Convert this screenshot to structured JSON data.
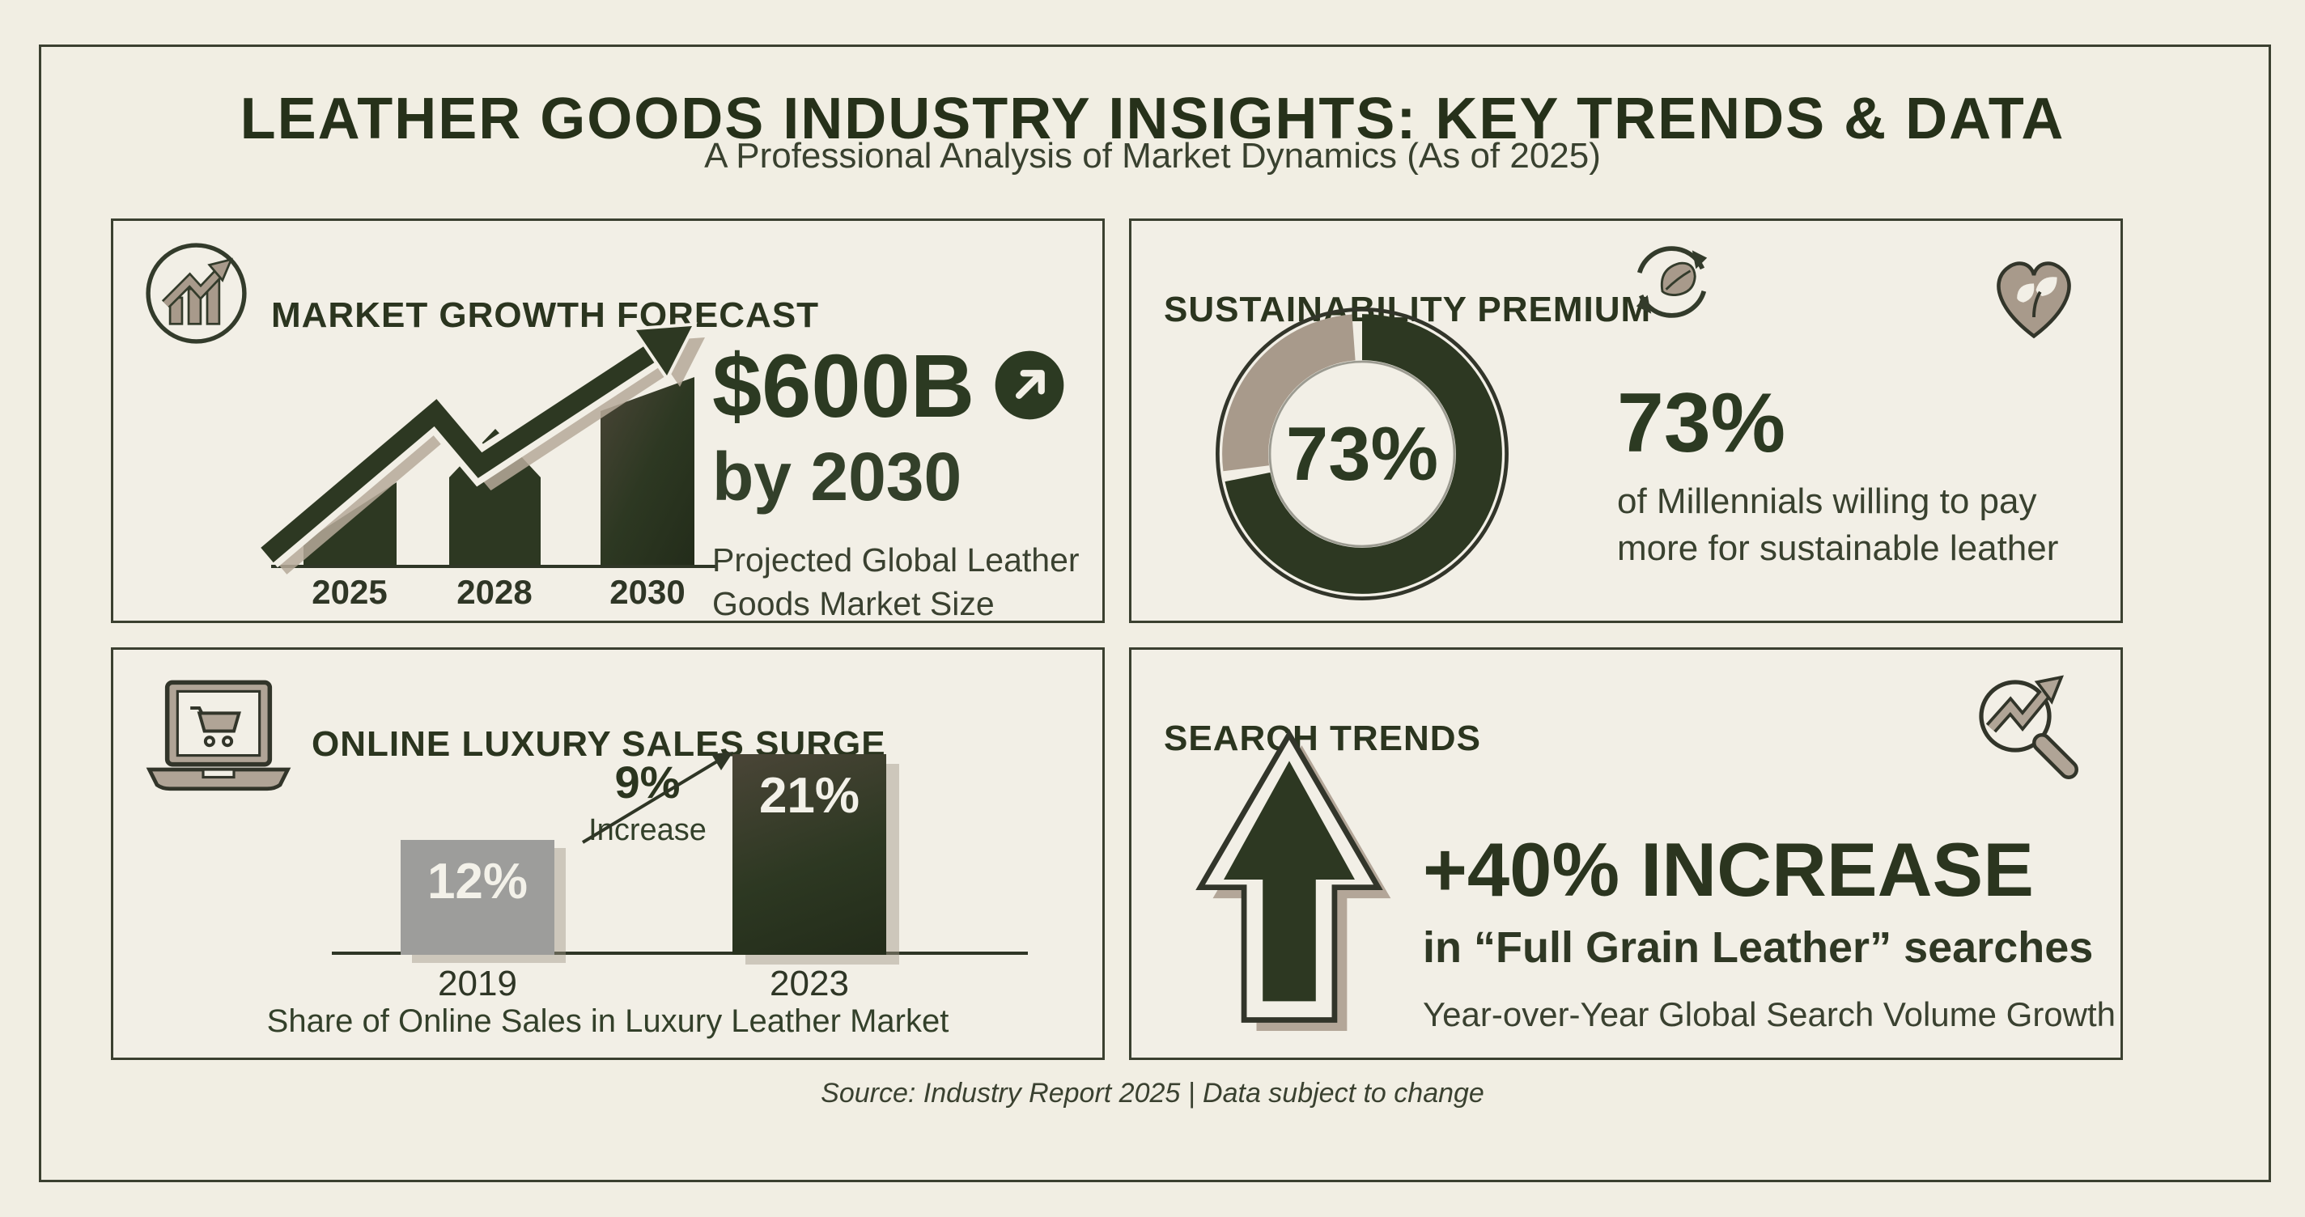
{
  "page": {
    "title": "LEATHER GOODS INDUSTRY INSIGHTS: KEY TRENDS & DATA",
    "subtitle": "A Professional Analysis of Market Dynamics (As of 2025)",
    "footer": "Source: Industry Report 2025 | Data subject to change"
  },
  "colors": {
    "background": "#f1eee3",
    "ink_dark_green": "#2b351f",
    "bar_green": "#2d3822",
    "taupe": "#a89a8b",
    "gray_bar": "#9d9d9b",
    "frame_border": "#3b4030",
    "bar_value_text": "#f3f1e9"
  },
  "market_growth": {
    "title": "MARKET GROWTH FORECAST",
    "icon": "growth-chart-circle-icon",
    "headline_value": "$600B",
    "headline_icon": "arrow-up-right-circle-icon",
    "headline_timeframe": "by 2030",
    "description": "Projected Global Leather\nGoods Market Size",
    "years": [
      "2025",
      "2028",
      "2030"
    ]
  },
  "sustainability": {
    "title": "SUSTAINABILITY PREMIUM",
    "title_icon": "recycle-leaf-icon",
    "corner_icon": "heart-leaf-icon",
    "donut_center_label": "73%",
    "stat_value": "73%",
    "stat_description": "of Millennials willing to pay\nmore for sustainable leather"
  },
  "online_sales": {
    "title": "ONLINE LUXURY SALES SURGE",
    "icon": "laptop-cart-icon",
    "increase_value": "9%",
    "increase_label": "Increase",
    "bars": [
      {
        "year": "2019",
        "value": "12%"
      },
      {
        "year": "2023",
        "value": "21%"
      }
    ],
    "caption": "Share of Online Sales in Luxury Leather Market"
  },
  "search_trends": {
    "title": "SEARCH TRENDS",
    "corner_icon": "search-trend-magnifier-icon",
    "headline": "+40% INCREASE",
    "subheadline": "in “Full Grain Leather” searches",
    "caption": "Year-over-Year Global Search Volume Growth"
  },
  "chart_data": [
    {
      "type": "bar",
      "title": "Market Growth Forecast",
      "categories": [
        "2025",
        "2028",
        "2030"
      ],
      "values": null,
      "note": "decorative ascending bars with growth arrow; no numeric axis shown",
      "annotation": "$600B by 2030 — Projected Global Leather Goods Market Size"
    },
    {
      "type": "pie",
      "title": "Sustainability Premium",
      "labels": [
        "Millennials willing to pay more for sustainable leather",
        "Remainder"
      ],
      "values": [
        73,
        27
      ],
      "center_label": "73%",
      "colors": [
        "#2d3822",
        "#a89a8b"
      ],
      "legend_position": "none"
    },
    {
      "type": "bar",
      "title": "Online Luxury Sales Surge",
      "categories": [
        "2019",
        "2023"
      ],
      "values": [
        12,
        21
      ],
      "unit": "%",
      "annotation": "9% Increase",
      "xlabel": "Share of Online Sales in Luxury Leather Market",
      "colors": [
        "#9d9d9b",
        "#2d3822"
      ],
      "grid": false
    },
    {
      "type": "stat",
      "title": "Search Trends",
      "value": "+40%",
      "label": "increase in \"Full Grain Leather\" searches",
      "caption": "Year-over-Year Global Search Volume Growth"
    }
  ]
}
